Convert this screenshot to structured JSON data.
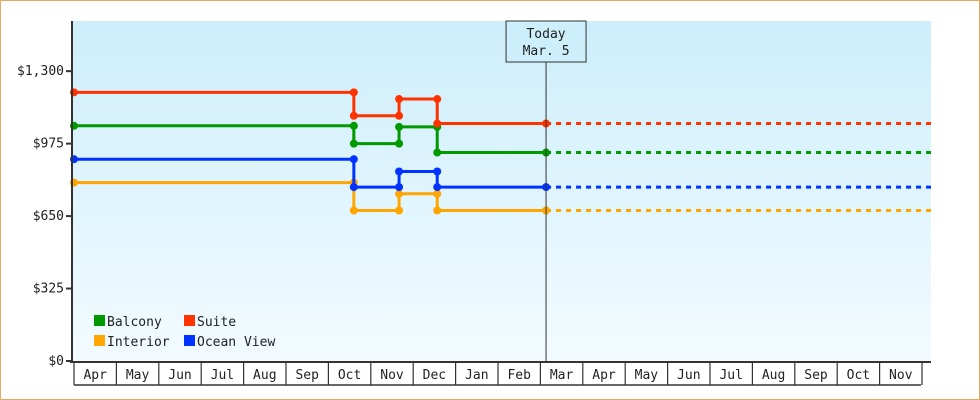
{
  "chart_data": {
    "type": "line",
    "step": true,
    "y_ticks": [
      "$0",
      "$325",
      "$650",
      "$975",
      "$1,300"
    ],
    "y_tick_values": [
      0,
      325,
      650,
      975,
      1300
    ],
    "ylim": [
      0,
      1525
    ],
    "x_tick_labels": [
      "Apr",
      "May",
      "Jun",
      "Jul",
      "Aug",
      "Sep",
      "Oct",
      "Nov",
      "Dec",
      "Jan",
      "Feb",
      "Mar",
      "Apr",
      "May",
      "Jun",
      "Jul",
      "Aug",
      "Sep",
      "Oct",
      "Nov"
    ],
    "today": {
      "label": "Today",
      "date_label": "Mar. 5",
      "date": "Mar 5"
    },
    "projection": "dashed to end of axis",
    "legend_position": "bottom-left",
    "series": [
      {
        "name": "Balcony",
        "color": "#009900",
        "points": [
          [
            "Apr 1",
            1055
          ],
          [
            "Oct 19",
            975
          ],
          [
            "Nov 21",
            1050
          ],
          [
            "Dec 18",
            935
          ],
          [
            "Mar 5",
            935
          ]
        ]
      },
      {
        "name": "Suite",
        "color": "#ff3300",
        "points": [
          [
            "Apr 1",
            1205
          ],
          [
            "Oct 19",
            1100
          ],
          [
            "Nov 21",
            1175
          ],
          [
            "Dec 18",
            1065
          ],
          [
            "Mar 5",
            1065
          ]
        ]
      },
      {
        "name": "Interior",
        "color": "#ffa500",
        "points": [
          [
            "Apr 1",
            800
          ],
          [
            "Oct 19",
            675
          ],
          [
            "Nov 21",
            750
          ],
          [
            "Dec 18",
            675
          ],
          [
            "Mar 5",
            675
          ]
        ]
      },
      {
        "name": "Ocean View",
        "color": "#0033ff",
        "points": [
          [
            "Apr 1",
            905
          ],
          [
            "Oct 19",
            780
          ],
          [
            "Nov 21",
            850
          ],
          [
            "Dec 18",
            780
          ],
          [
            "Mar 5",
            780
          ]
        ]
      }
    ]
  }
}
